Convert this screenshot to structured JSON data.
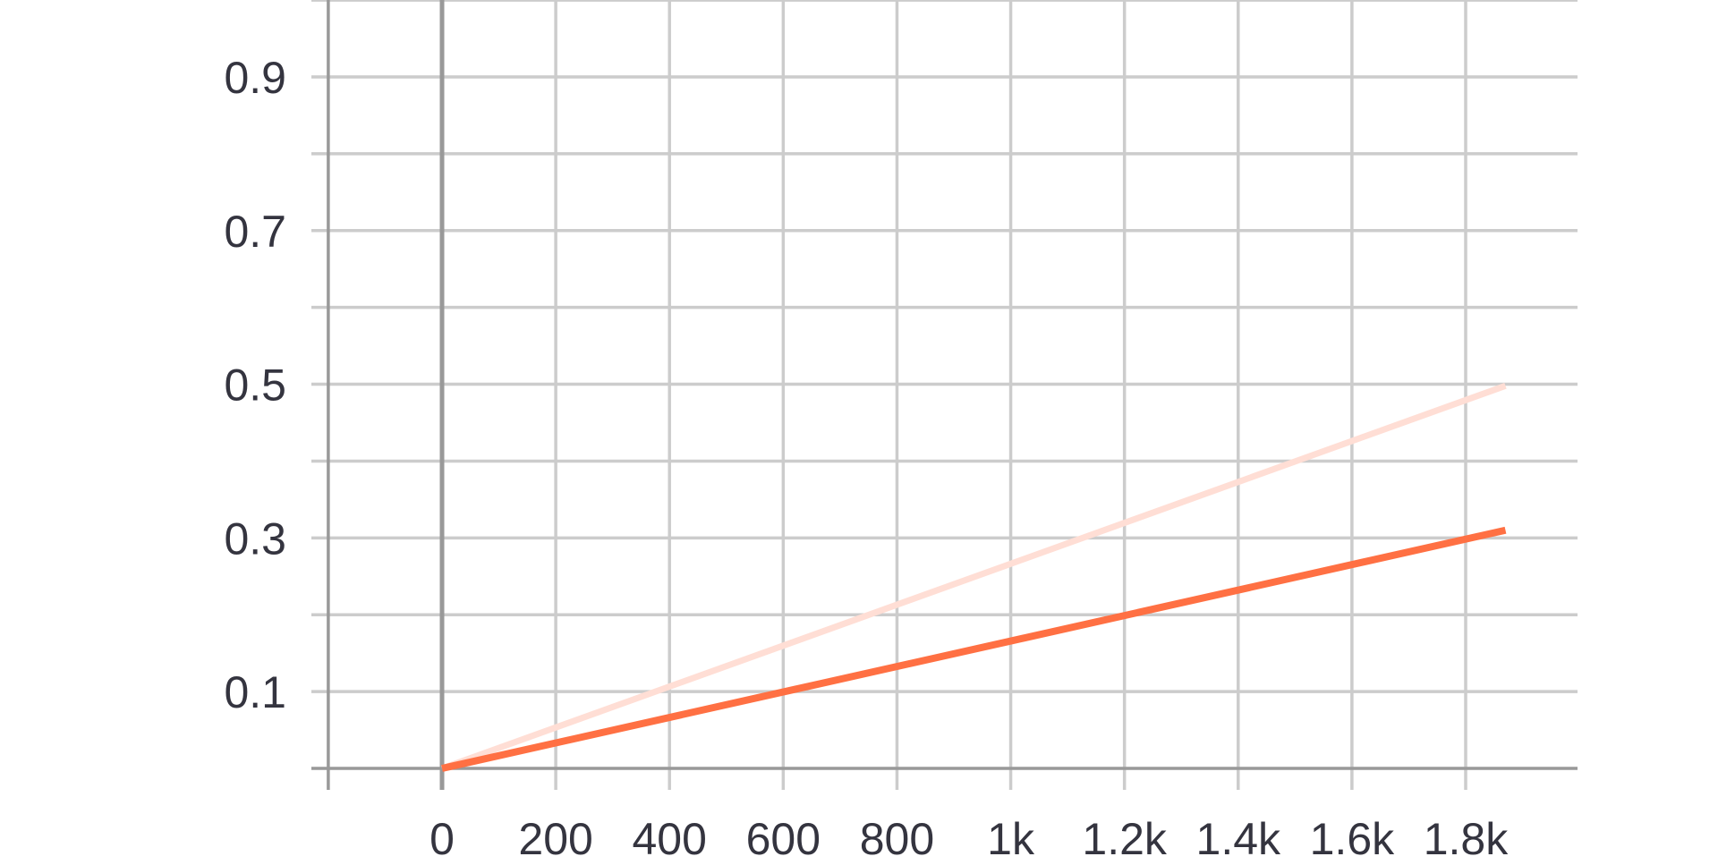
{
  "chart_data": {
    "type": "line",
    "title": "",
    "xlabel": "",
    "ylabel": "",
    "xlim": [
      -200,
      2000
    ],
    "ylim": [
      0,
      1.0
    ],
    "x_ticks": [
      0,
      200,
      400,
      600,
      800,
      1000,
      1200,
      1400,
      1600,
      1800
    ],
    "x_tick_labels": [
      "0",
      "200",
      "400",
      "600",
      "800",
      "1k",
      "1.2k",
      "1.4k",
      "1.6k",
      "1.8k"
    ],
    "y_ticks": [
      0.1,
      0.3,
      0.5,
      0.7,
      0.9
    ],
    "y_tick_labels": [
      "0.1",
      "0.3",
      "0.5",
      "0.7",
      "0.9"
    ],
    "y_minor_gridlines": [
      0.2,
      0.4,
      0.6,
      0.8,
      1.0
    ],
    "grid": true,
    "series": [
      {
        "color": "#ffded5",
        "x": [
          0,
          1870
        ],
        "y": [
          0.0,
          0.498
        ]
      },
      {
        "color": "#ff7043",
        "x": [
          0,
          1870
        ],
        "y": [
          0.0,
          0.31
        ]
      }
    ]
  }
}
